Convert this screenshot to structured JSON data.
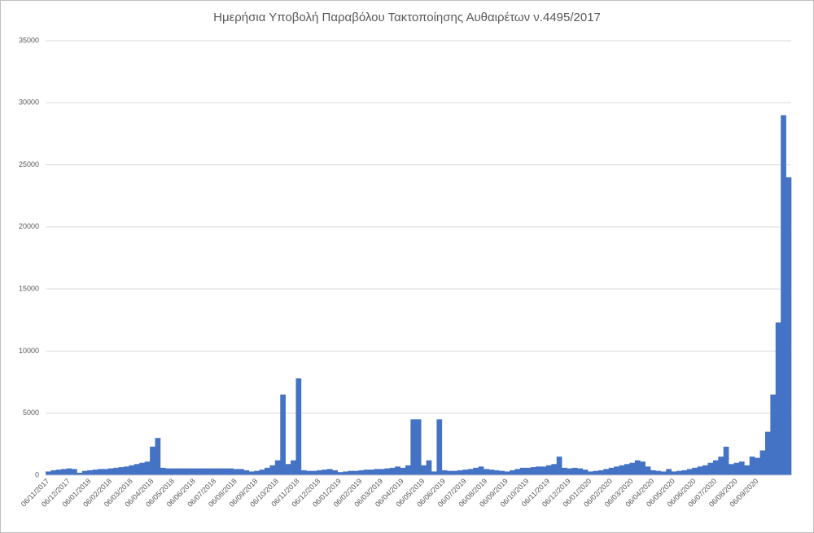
{
  "chart_data": {
    "type": "bar",
    "title": "Ημερήσια Υποβολή Παραβόλου Τακτοποίησης Αυθαιρέτων ν.4495/2017",
    "color": "#4472c4",
    "grid": true,
    "ylim": [
      0,
      35000
    ],
    "yticks": [
      0,
      5000,
      10000,
      15000,
      20000,
      25000,
      30000,
      35000
    ],
    "categories": [
      "06/11/2017",
      null,
      null,
      null,
      "06/12/2017",
      null,
      null,
      null,
      "06/01/2018",
      null,
      null,
      null,
      "06/02/2018",
      null,
      null,
      null,
      "06/03/2018",
      null,
      null,
      null,
      "06/04/2018",
      null,
      null,
      null,
      "06/05/2018",
      null,
      null,
      null,
      "06/06/2018",
      null,
      null,
      null,
      "06/07/2018",
      null,
      null,
      null,
      "06/08/2018",
      null,
      null,
      null,
      "06/09/2018",
      null,
      null,
      null,
      "06/10/2018",
      null,
      null,
      null,
      "06/11/2018",
      null,
      null,
      null,
      "06/12/2018",
      null,
      null,
      null,
      "06/01/2019",
      null,
      null,
      null,
      "06/02/2019",
      null,
      null,
      null,
      "06/03/2019",
      null,
      null,
      null,
      "06/04/2019",
      null,
      null,
      null,
      "06/05/2019",
      null,
      null,
      null,
      "06/06/2019",
      null,
      null,
      null,
      "06/07/2019",
      null,
      null,
      null,
      "06/08/2019",
      null,
      null,
      null,
      "06/09/2019",
      null,
      null,
      null,
      "06/10/2019",
      null,
      null,
      null,
      "06/11/2019",
      null,
      null,
      null,
      "06/12/2019",
      null,
      null,
      null,
      "06/01/2020",
      null,
      null,
      null,
      "06/02/2020",
      null,
      null,
      null,
      "06/03/2020",
      null,
      null,
      null,
      "06/04/2020",
      null,
      null,
      null,
      "06/05/2020",
      null,
      null,
      null,
      "06/06/2020",
      null,
      null,
      null,
      "06/07/2020",
      null,
      null,
      null,
      "06/08/2020",
      null,
      null,
      null,
      "06/09/2020",
      null,
      null,
      null,
      null,
      null,
      null
    ],
    "values": [
      300,
      400,
      450,
      500,
      550,
      500,
      200,
      350,
      400,
      450,
      500,
      500,
      550,
      600,
      650,
      700,
      800,
      900,
      1000,
      1100,
      2300,
      3000,
      600,
      550,
      550,
      550,
      550,
      550,
      550,
      550,
      550,
      550,
      550,
      550,
      550,
      550,
      500,
      500,
      400,
      300,
      350,
      450,
      600,
      800,
      1200,
      6500,
      900,
      1200,
      7800,
      400,
      350,
      350,
      400,
      450,
      500,
      400,
      250,
      300,
      350,
      350,
      400,
      450,
      450,
      500,
      500,
      550,
      600,
      700,
      600,
      800,
      4500,
      4500,
      800,
      1200,
      300,
      4500,
      400,
      350,
      350,
      400,
      450,
      500,
      600,
      700,
      500,
      450,
      400,
      350,
      300,
      400,
      500,
      600,
      600,
      650,
      700,
      700,
      800,
      900,
      1500,
      600,
      550,
      600,
      550,
      450,
      300,
      350,
      400,
      500,
      600,
      700,
      800,
      900,
      1000,
      1200,
      1100,
      700,
      400,
      350,
      300,
      500,
      300,
      350,
      400,
      500,
      600,
      700,
      800,
      1000,
      1200,
      1500,
      2300,
      900,
      1000,
      1100,
      800,
      1500,
      1400,
      2000,
      3500,
      6500,
      12300,
      29000,
      24000
    ]
  }
}
